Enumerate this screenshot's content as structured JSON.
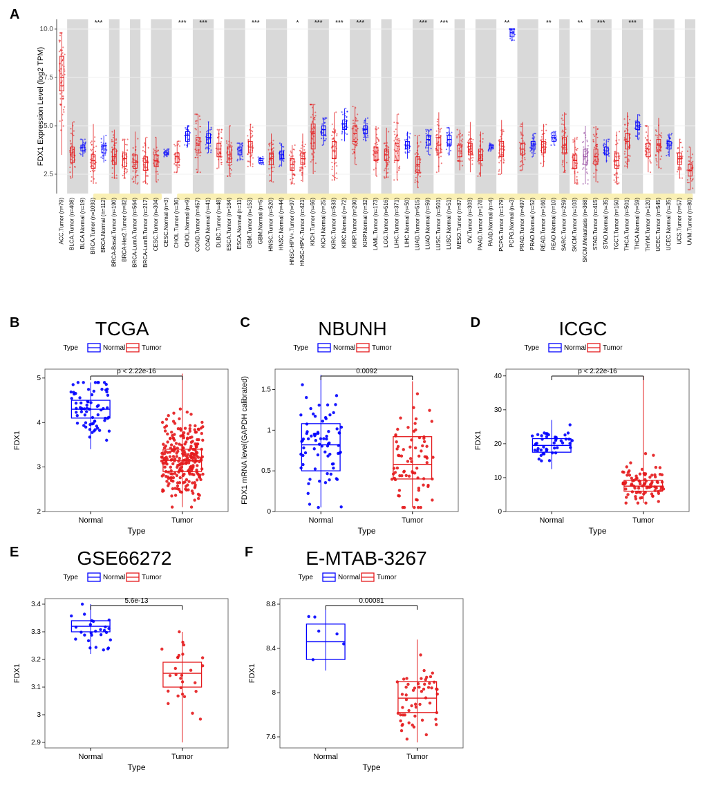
{
  "colors": {
    "tumor": "#e41a1c",
    "normal": "#0000ff",
    "metastasis": "#984ea3",
    "band": "#d9d9d9",
    "bg": "#ffffff",
    "highlight_bg": "#faf0b4",
    "ygrid": "#f0f0f0",
    "axis": "#4d4d4d",
    "panel_border": "#595959",
    "text": "#000000"
  },
  "panelA": {
    "label": "A",
    "ylabel": "FDX1 Expression Level (log2 TPM)",
    "y_ticks": [
      2.5,
      5.0,
      7.5,
      10.0
    ],
    "ylim": [
      1.5,
      10.5
    ],
    "label_fontsize": 8,
    "axis_fontsize": 11,
    "sig_fontsize": 10,
    "groups": [
      {
        "label": "ACC.Tumor (n=79)",
        "color": "tumor",
        "median": 7.5,
        "q1": 6.8,
        "q3": 8.6,
        "lo": 3.5,
        "hi": 9.8,
        "shade": false,
        "hl": false
      },
      {
        "label": "BLCA.Tumor (n=408)",
        "color": "tumor",
        "median": 3.6,
        "q1": 3.1,
        "q3": 3.9,
        "lo": 2.3,
        "hi": 5.2,
        "shade": true,
        "hl": false
      },
      {
        "label": "BLCA.Normal (n=19)",
        "color": "normal",
        "median": 3.9,
        "q1": 3.7,
        "q3": 4.0,
        "lo": 3.4,
        "hi": 4.3,
        "shade": true,
        "hl": false
      },
      {
        "label": "BRCA.Tumor (n=1093)",
        "color": "tumor",
        "median": 3.2,
        "q1": 2.8,
        "q3": 3.5,
        "lo": 2.0,
        "hi": 5.1,
        "shade": false,
        "hl": true,
        "sig": "***"
      },
      {
        "label": "BRCA.Normal (n=112)",
        "color": "normal",
        "median": 3.8,
        "q1": 3.6,
        "q3": 4.0,
        "lo": 3.1,
        "hi": 4.5,
        "shade": false,
        "hl": true
      },
      {
        "label": "BRCA-Basal.Tumor (n=190)",
        "color": "tumor",
        "median": 3.4,
        "q1": 3.0,
        "q3": 3.8,
        "lo": 2.3,
        "hi": 4.8,
        "shade": true,
        "hl": false
      },
      {
        "label": "BRCA-Her2.Tumor (n=82)",
        "color": "tumor",
        "median": 3.3,
        "q1": 2.9,
        "q3": 3.6,
        "lo": 2.3,
        "hi": 4.3,
        "shade": false,
        "hl": false
      },
      {
        "label": "BRCA-LumA.Tumor (n=564)",
        "color": "tumor",
        "median": 3.1,
        "q1": 2.8,
        "q3": 3.5,
        "lo": 2.0,
        "hi": 4.7,
        "shade": true,
        "hl": false
      },
      {
        "label": "BRCA-LumB.Tumor (n=217)",
        "color": "tumor",
        "median": 3.1,
        "q1": 2.7,
        "q3": 3.4,
        "lo": 2.0,
        "hi": 4.4,
        "shade": false,
        "hl": false
      },
      {
        "label": "CESC.Tumor (n=304)",
        "color": "tumor",
        "median": 3.2,
        "q1": 2.9,
        "q3": 3.5,
        "lo": 2.1,
        "hi": 4.4,
        "shade": true,
        "hl": false
      },
      {
        "label": "CESC.Normal (n=3)",
        "color": "normal",
        "median": 3.6,
        "q1": 3.5,
        "q3": 3.7,
        "lo": 3.4,
        "hi": 3.8,
        "shade": true,
        "hl": false
      },
      {
        "label": "CHOL.Tumor (n=36)",
        "color": "tumor",
        "median": 3.4,
        "q1": 3.1,
        "q3": 3.6,
        "lo": 2.6,
        "hi": 4.2,
        "shade": false,
        "hl": true,
        "sig": "***"
      },
      {
        "label": "CHOL.Normal (n=9)",
        "color": "normal",
        "median": 4.5,
        "q1": 4.2,
        "q3": 4.7,
        "lo": 3.9,
        "hi": 5.0,
        "shade": false,
        "hl": true
      },
      {
        "label": "COAD.Tumor (n=457)",
        "color": "tumor",
        "median": 4.0,
        "q1": 3.6,
        "q3": 4.4,
        "lo": 2.6,
        "hi": 5.6,
        "shade": true,
        "hl": true,
        "sig": "***"
      },
      {
        "label": "COAD.Normal (n=41)",
        "color": "normal",
        "median": 4.4,
        "q1": 4.1,
        "q3": 4.6,
        "lo": 3.6,
        "hi": 5.2,
        "shade": true,
        "hl": true
      },
      {
        "label": "DLBC.Tumor (n=48)",
        "color": "tumor",
        "median": 3.8,
        "q1": 3.4,
        "q3": 4.1,
        "lo": 2.8,
        "hi": 4.8,
        "shade": false,
        "hl": false
      },
      {
        "label": "ESCA.Tumor (n=184)",
        "color": "tumor",
        "median": 3.5,
        "q1": 3.1,
        "q3": 3.9,
        "lo": 2.4,
        "hi": 5.0,
        "shade": true,
        "hl": false
      },
      {
        "label": "ESCA.Normal (n=11)",
        "color": "normal",
        "median": 3.7,
        "q1": 3.5,
        "q3": 3.9,
        "lo": 3.2,
        "hi": 4.1,
        "shade": true,
        "hl": false
      },
      {
        "label": "GBM.Tumor (n=153)",
        "color": "tumor",
        "median": 3.9,
        "q1": 3.6,
        "q3": 4.2,
        "lo": 2.9,
        "hi": 5.1,
        "shade": false,
        "hl": true,
        "sig": "***"
      },
      {
        "label": "GBM.Normal (n=5)",
        "color": "normal",
        "median": 3.2,
        "q1": 3.1,
        "q3": 3.3,
        "lo": 3.0,
        "hi": 3.4,
        "shade": false,
        "hl": true
      },
      {
        "label": "HNSC.Tumor (n=520)",
        "color": "tumor",
        "median": 3.3,
        "q1": 3.0,
        "q3": 3.6,
        "lo": 2.1,
        "hi": 4.6,
        "shade": true,
        "hl": false
      },
      {
        "label": "HNSC.Normal (n=44)",
        "color": "normal",
        "median": 3.5,
        "q1": 3.3,
        "q3": 3.7,
        "lo": 2.9,
        "hi": 4.1,
        "shade": true,
        "hl": false
      },
      {
        "label": "HNSC-HPV+.Tumor (n=97)",
        "color": "tumor",
        "median": 3.0,
        "q1": 2.7,
        "q3": 3.3,
        "lo": 2.0,
        "hi": 4.0,
        "shade": false,
        "hl": true,
        "sig": "*"
      },
      {
        "label": "HNSC-HPV-.Tumor (n=421)",
        "color": "tumor",
        "median": 3.3,
        "q1": 3.0,
        "q3": 3.6,
        "lo": 2.1,
        "hi": 4.6,
        "shade": false,
        "hl": true
      },
      {
        "label": "KICH.Tumor (n=66)",
        "color": "tumor",
        "median": 4.6,
        "q1": 3.8,
        "q3": 5.1,
        "lo": 2.5,
        "hi": 6.1,
        "shade": true,
        "hl": true,
        "sig": "***"
      },
      {
        "label": "KICH.Normal (n=25)",
        "color": "normal",
        "median": 4.8,
        "q1": 4.5,
        "q3": 5.0,
        "lo": 4.0,
        "hi": 5.4,
        "shade": true,
        "hl": true
      },
      {
        "label": "KIRC.Tumor (n=533)",
        "color": "tumor",
        "median": 3.7,
        "q1": 3.3,
        "q3": 4.2,
        "lo": 2.2,
        "hi": 5.7,
        "shade": false,
        "hl": true,
        "sig": "***"
      },
      {
        "label": "KIRC.Normal (n=72)",
        "color": "normal",
        "median": 5.1,
        "q1": 4.8,
        "q3": 5.3,
        "lo": 4.2,
        "hi": 5.9,
        "shade": false,
        "hl": true
      },
      {
        "label": "KIRP.Tumor (n=290)",
        "color": "tumor",
        "median": 4.6,
        "q1": 4.2,
        "q3": 5.0,
        "lo": 3.0,
        "hi": 6.0,
        "shade": true,
        "hl": true,
        "sig": "***"
      },
      {
        "label": "KIRP.Normal (n=32)",
        "color": "normal",
        "median": 4.8,
        "q1": 4.6,
        "q3": 5.0,
        "lo": 4.2,
        "hi": 5.4,
        "shade": true,
        "hl": true
      },
      {
        "label": "LAML.Tumor (n=173)",
        "color": "tumor",
        "median": 3.6,
        "q1": 3.2,
        "q3": 3.9,
        "lo": 2.4,
        "hi": 5.0,
        "shade": false,
        "hl": false
      },
      {
        "label": "LGG.Tumor (n=516)",
        "color": "tumor",
        "median": 3.5,
        "q1": 3.2,
        "q3": 3.8,
        "lo": 2.3,
        "hi": 4.9,
        "shade": true,
        "hl": false
      },
      {
        "label": "LIHC.Tumor (n=371)",
        "color": "tumor",
        "median": 3.7,
        "q1": 3.2,
        "q3": 4.1,
        "lo": 2.2,
        "hi": 5.6,
        "shade": false,
        "hl": false
      },
      {
        "label": "LIHC.Normal (n=50)",
        "color": "normal",
        "median": 4.0,
        "q1": 3.8,
        "q3": 4.2,
        "lo": 3.3,
        "hi": 4.7,
        "shade": false,
        "hl": false
      },
      {
        "label": "LUAD.Tumor (n=515)",
        "color": "tumor",
        "median": 3.0,
        "q1": 2.6,
        "q3": 3.4,
        "lo": 1.8,
        "hi": 4.5,
        "shade": true,
        "hl": true,
        "sig": "***"
      },
      {
        "label": "LUAD.Normal (n=59)",
        "color": "normal",
        "median": 4.3,
        "q1": 4.0,
        "q3": 4.5,
        "lo": 3.5,
        "hi": 4.8,
        "shade": true,
        "hl": true
      },
      {
        "label": "LUSC.Tumor (n=501)",
        "color": "tumor",
        "median": 4.0,
        "q1": 3.6,
        "q3": 4.4,
        "lo": 2.6,
        "hi": 5.7,
        "shade": false,
        "hl": true,
        "sig": "***"
      },
      {
        "label": "LUSC.Normal (n=51)",
        "color": "normal",
        "median": 4.3,
        "q1": 4.0,
        "q3": 4.5,
        "lo": 3.5,
        "hi": 4.9,
        "shade": false,
        "hl": true
      },
      {
        "label": "MESO.Tumor (n=87)",
        "color": "tumor",
        "median": 3.7,
        "q1": 3.4,
        "q3": 4.0,
        "lo": 2.7,
        "hi": 4.8,
        "shade": true,
        "hl": false
      },
      {
        "label": "OV.Tumor (n=303)",
        "color": "tumor",
        "median": 3.8,
        "q1": 3.5,
        "q3": 4.1,
        "lo": 2.6,
        "hi": 5.2,
        "shade": false,
        "hl": false
      },
      {
        "label": "PAAD.Tumor (n=178)",
        "color": "tumor",
        "median": 3.5,
        "q1": 3.2,
        "q3": 3.8,
        "lo": 2.4,
        "hi": 4.7,
        "shade": true,
        "hl": false
      },
      {
        "label": "PAAD.Normal (n=4)",
        "color": "normal",
        "median": 3.9,
        "q1": 3.8,
        "q3": 4.0,
        "lo": 3.7,
        "hi": 4.1,
        "shade": true,
        "hl": false
      },
      {
        "label": "PCPG.Tumor (n=179)",
        "color": "tumor",
        "median": 3.8,
        "q1": 3.4,
        "q3": 4.2,
        "lo": 2.5,
        "hi": 5.3,
        "shade": false,
        "hl": true,
        "sig": "**"
      },
      {
        "label": "PCPG.Normal (n=3)",
        "color": "normal",
        "median": 9.8,
        "q1": 9.6,
        "q3": 10.0,
        "lo": 9.4,
        "hi": 10.0,
        "shade": false,
        "hl": true
      },
      {
        "label": "PRAD.Tumor (n=497)",
        "color": "tumor",
        "median": 3.8,
        "q1": 3.5,
        "q3": 4.1,
        "lo": 2.7,
        "hi": 5.2,
        "shade": true,
        "hl": false
      },
      {
        "label": "PRAD.Normal (n=52)",
        "color": "normal",
        "median": 4.0,
        "q1": 3.8,
        "q3": 4.2,
        "lo": 3.4,
        "hi": 4.6,
        "shade": true,
        "hl": false
      },
      {
        "label": "READ.Tumor (n=166)",
        "color": "tumor",
        "median": 3.9,
        "q1": 3.6,
        "q3": 4.2,
        "lo": 2.9,
        "hi": 5.1,
        "shade": false,
        "hl": true,
        "sig": "**"
      },
      {
        "label": "READ.Normal (n=10)",
        "color": "normal",
        "median": 4.4,
        "q1": 4.2,
        "q3": 4.5,
        "lo": 4.0,
        "hi": 4.7,
        "shade": false,
        "hl": true
      },
      {
        "label": "SARC.Tumor (n=259)",
        "color": "tumor",
        "median": 4.0,
        "q1": 3.6,
        "q3": 4.4,
        "lo": 2.6,
        "hi": 5.7,
        "shade": true,
        "hl": false
      },
      {
        "label": "SKCM.Tumor (n=103)",
        "color": "tumor",
        "median": 3.2,
        "q1": 2.8,
        "q3": 3.5,
        "lo": 2.0,
        "hi": 4.4,
        "shade": false,
        "hl": true,
        "sig": "**"
      },
      {
        "label": "SKCM.Metastasis (n=368)",
        "color": "metastasis",
        "median": 3.4,
        "q1": 3.0,
        "q3": 3.8,
        "lo": 2.0,
        "hi": 5.0,
        "shade": false,
        "hl": true
      },
      {
        "label": "STAD.Tumor (n=415)",
        "color": "tumor",
        "median": 3.4,
        "q1": 3.0,
        "q3": 3.8,
        "lo": 2.1,
        "hi": 5.0,
        "shade": true,
        "hl": true,
        "sig": "***"
      },
      {
        "label": "STAD.Normal (n=35)",
        "color": "normal",
        "median": 3.7,
        "q1": 3.5,
        "q3": 3.9,
        "lo": 3.1,
        "hi": 4.3,
        "shade": true,
        "hl": true
      },
      {
        "label": "TGCT.Tumor (n=150)",
        "color": "tumor",
        "median": 3.2,
        "q1": 2.8,
        "q3": 3.6,
        "lo": 2.0,
        "hi": 4.7,
        "shade": false,
        "hl": false
      },
      {
        "label": "THCA.Tumor (n=501)",
        "color": "tumor",
        "median": 4.2,
        "q1": 3.8,
        "q3": 4.6,
        "lo": 2.8,
        "hi": 5.7,
        "shade": true,
        "hl": true,
        "sig": "***"
      },
      {
        "label": "THCA.Normal (n=59)",
        "color": "normal",
        "median": 5.0,
        "q1": 4.8,
        "q3": 5.2,
        "lo": 4.3,
        "hi": 5.6,
        "shade": true,
        "hl": true
      },
      {
        "label": "THYM.Tumor (n=120)",
        "color": "tumor",
        "median": 3.8,
        "q1": 3.4,
        "q3": 4.1,
        "lo": 2.6,
        "hi": 5.0,
        "shade": false,
        "hl": false
      },
      {
        "label": "UCEC.Tumor (n=545)",
        "color": "tumor",
        "median": 4.0,
        "q1": 3.7,
        "q3": 4.3,
        "lo": 2.8,
        "hi": 5.4,
        "shade": true,
        "hl": false
      },
      {
        "label": "UCEC.Normal (n=35)",
        "color": "normal",
        "median": 4.0,
        "q1": 3.8,
        "q3": 4.2,
        "lo": 3.4,
        "hi": 4.6,
        "shade": true,
        "hl": false
      },
      {
        "label": "UCS.Tumor (n=57)",
        "color": "tumor",
        "median": 3.3,
        "q1": 3.0,
        "q3": 3.6,
        "lo": 2.3,
        "hi": 4.3,
        "shade": false,
        "hl": false
      },
      {
        "label": "UVM.Tumor (n=80)",
        "color": "tumor",
        "median": 2.7,
        "q1": 2.4,
        "q3": 3.0,
        "lo": 1.7,
        "hi": 3.9,
        "shade": true,
        "hl": false
      }
    ]
  },
  "subpanels": [
    {
      "id": "B",
      "title": "TCGA",
      "ylabel": "FDX1",
      "xlabel": "Type",
      "pvalue": "p < 2.22e-16",
      "ylim": [
        2,
        5.2
      ],
      "yticks": [
        2,
        3,
        4,
        5
      ],
      "data": [
        {
          "name": "Normal",
          "color": "normal",
          "median": 4.3,
          "q1": 4.1,
          "q3": 4.5,
          "lo": 3.4,
          "hi": 4.9,
          "n": 70,
          "spread": 0.35
        },
        {
          "name": "Tumor",
          "color": "tumor",
          "median": 3.15,
          "q1": 2.9,
          "q3": 3.4,
          "lo": 2.1,
          "hi": 5.1,
          "n": 520,
          "spread": 0.45
        }
      ]
    },
    {
      "id": "C",
      "title": "NBUNH",
      "ylabel": "FDX1 mRNA level(GAPDH calibrated)",
      "xlabel": "Type",
      "pvalue": "0.0092",
      "ylim": [
        0,
        1.75
      ],
      "yticks": [
        0.0,
        0.5,
        1.0,
        1.5
      ],
      "data": [
        {
          "name": "Normal",
          "color": "normal",
          "median": 0.82,
          "q1": 0.5,
          "q3": 1.08,
          "lo": 0.05,
          "hi": 1.68,
          "n": 75,
          "spread": 0.36
        },
        {
          "name": "Tumor",
          "color": "tumor",
          "median": 0.58,
          "q1": 0.4,
          "q3": 0.92,
          "lo": 0.05,
          "hi": 1.6,
          "n": 75,
          "spread": 0.36
        }
      ]
    },
    {
      "id": "D",
      "title": "ICGC",
      "ylabel": "FDX1",
      "xlabel": "Type",
      "pvalue": "p < 2.22e-16",
      "ylim": [
        0,
        42
      ],
      "yticks": [
        0,
        10,
        20,
        30,
        40
      ],
      "data": [
        {
          "name": "Normal",
          "color": "normal",
          "median": 19.5,
          "q1": 17.5,
          "q3": 21.5,
          "lo": 12.5,
          "hi": 27.0,
          "n": 45,
          "spread": 3.0
        },
        {
          "name": "Tumor",
          "color": "tumor",
          "median": 7.5,
          "q1": 6.0,
          "q3": 9.2,
          "lo": 2.5,
          "hi": 40.0,
          "n": 90,
          "spread": 3.5
        }
      ]
    },
    {
      "id": "E",
      "title": "GSE66272",
      "ylabel": "FDX1",
      "xlabel": "Type",
      "pvalue": "5.6e-13",
      "ylim": [
        2.88,
        3.42
      ],
      "yticks": [
        2.9,
        3.0,
        3.1,
        3.2,
        3.3,
        3.4
      ],
      "data": [
        {
          "name": "Normal",
          "color": "normal",
          "median": 3.32,
          "q1": 3.3,
          "q3": 3.34,
          "lo": 3.22,
          "hi": 3.4,
          "n": 27,
          "spread": 0.035
        },
        {
          "name": "Tumor",
          "color": "tumor",
          "median": 3.15,
          "q1": 3.1,
          "q3": 3.19,
          "lo": 2.9,
          "hi": 3.3,
          "n": 27,
          "spread": 0.07
        }
      ]
    },
    {
      "id": "F",
      "title": "E-MTAB-3267",
      "ylabel": "FDX1",
      "xlabel": "Type",
      "pvalue": "0.00081",
      "ylim": [
        7.5,
        8.85
      ],
      "yticks": [
        7.6,
        8.0,
        8.4,
        8.8
      ],
      "data": [
        {
          "name": "Normal",
          "color": "normal",
          "median": 8.46,
          "q1": 8.3,
          "q3": 8.62,
          "lo": 8.2,
          "hi": 8.75,
          "n": 6,
          "spread": 0.18
        },
        {
          "name": "Tumor",
          "color": "tumor",
          "median": 7.95,
          "q1": 7.82,
          "q3": 8.1,
          "lo": 7.55,
          "hi": 8.48,
          "n": 55,
          "spread": 0.18
        }
      ]
    }
  ],
  "legend": {
    "title": "Type",
    "items": [
      {
        "name": "Normal",
        "color": "normal"
      },
      {
        "name": "Tumor",
        "color": "tumor"
      }
    ]
  }
}
